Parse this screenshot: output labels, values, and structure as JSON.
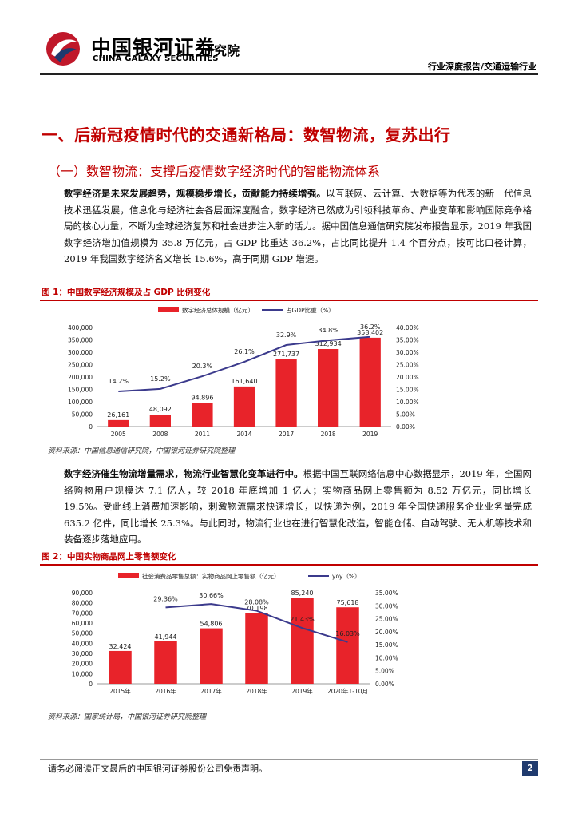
{
  "header": {
    "brand_cn": "中国银河证券",
    "brand_en": "CHINA GALAXY SECURITIES",
    "brand_inst": "研究院",
    "report_type": "行业深度报告/交通运输行业",
    "logo_colors": [
      "#c0182a",
      "#1f3a6e"
    ]
  },
  "heading1": "一、后新冠疫情时代的交通新格局：数智物流，复苏出行",
  "heading2": "（一）数智物流：支撑后疫情数字经济时代的智能物流体系",
  "para1": {
    "lead": "数字经济是未来发展趋势，规模稳步增长，贡献能力持续增强。",
    "body": "以互联网、云计算、大数据等为代表的新一代信息技术迅猛发展，信息化与经济社会各层面深度融合，数字经济已然成为引领科技革命、产业变革和影响国际竞争格局的核心力量，不断为全球经济复苏和社会进步注入新的活力。据中国信息通信研究院发布报告显示，2019 年我国数字经济增加值规模为 35.8 万亿元，占 GDP 比重达 36.2%，占比同比提升 1.4 个百分点，按可比口径计算，2019 年我国数字经济名义增长 15.6%，高于同期 GDP 增速。"
  },
  "figure1": {
    "title": "图 1：中国数字经济规模及占 GDP 比例变化",
    "source": "资料来源：中国信息通信研究院，中国银河证券研究院整理"
  },
  "para2": {
    "lead": "数字经济催生物流增量需求，物流行业智慧化变革进行中。",
    "body": "根据中国互联网络信息中心数据显示，2019 年，全国网络购物用户规模达 7.1 亿人，较 2018 年底增加 1 亿人；实物商品网上零售额为 8.52 万亿元，同比增长 19.5%。受此线上消费加速影响，刺激物流需求快速增长，以快递为例，2019 年全国快递服务企业业务量完成 635.2 亿件，同比增长 25.3%。与此同时，物流行业也在进行智慧化改造，智能仓储、自动驾驶、无人机等技术和装备逐步落地应用。"
  },
  "figure2": {
    "title": "图 2：中国实物商品网上零售额变化",
    "source": "资料来源：国家统计局，中国银河证券研究院整理"
  },
  "chart_data": [
    {
      "type": "bar",
      "title": "",
      "categories": [
        "2005",
        "2008",
        "2011",
        "2014",
        "2017",
        "2018",
        "2019"
      ],
      "series": [
        {
          "name": "数字经济总体规模（亿元）",
          "type": "bar",
          "axis": "left",
          "values": [
            26161,
            48092,
            94896,
            161640,
            271737,
            312934,
            358402
          ],
          "labels": [
            "26,161",
            "48,092",
            "94,896",
            "161,640",
            "271,737",
            "312,934",
            "358,402"
          ],
          "color": "#e8232a"
        },
        {
          "name": "占GDP比重（%）",
          "type": "line",
          "axis": "right",
          "values": [
            14.2,
            15.2,
            20.3,
            26.1,
            32.9,
            34.8,
            36.2
          ],
          "labels": [
            "14.2%",
            "15.2%",
            "20.3%",
            "26.1%",
            "32.9%",
            "34.8%",
            "36.2%"
          ],
          "color": "#3b3a8c"
        }
      ],
      "left_axis": {
        "ylim": [
          0,
          400000
        ],
        "ticks": [
          "0",
          "50,000",
          "100,000",
          "150,000",
          "200,000",
          "250,000",
          "300,000",
          "350,000",
          "400,000"
        ]
      },
      "right_axis": {
        "ylim": [
          0,
          40
        ],
        "ticks": [
          "0.00%",
          "5.00%",
          "10.00%",
          "15.00%",
          "20.00%",
          "25.00%",
          "30.00%",
          "35.00%",
          "40.00%"
        ]
      },
      "legend": "top-center",
      "grid": false
    },
    {
      "type": "bar",
      "title": "",
      "categories": [
        "2015年",
        "2016年",
        "2017年",
        "2018年",
        "2019年",
        "2020年1-10月"
      ],
      "series": [
        {
          "name": "社会消费品零售总额：实物商品网上零售额（亿元）",
          "type": "bar",
          "axis": "left",
          "values": [
            32424,
            41944,
            54806,
            70198,
            85240,
            75618
          ],
          "labels": [
            "32,424",
            "41,944",
            "54,806",
            "70,198",
            "85,240",
            "75,618"
          ],
          "color": "#e8232a"
        },
        {
          "name": "yoy（%）",
          "type": "line",
          "axis": "right",
          "values": [
            null,
            29.36,
            30.66,
            28.08,
            21.43,
            16.03
          ],
          "labels": [
            "",
            "29.36%",
            "30.66%",
            "28.08%",
            "21.43%",
            "16.03%"
          ],
          "color": "#3b3a8c"
        }
      ],
      "left_axis": {
        "ylim": [
          0,
          90000
        ],
        "ticks": [
          "0",
          "10,000",
          "20,000",
          "30,000",
          "40,000",
          "50,000",
          "60,000",
          "70,000",
          "80,000",
          "90,000"
        ]
      },
      "right_axis": {
        "ylim": [
          0,
          35
        ],
        "ticks": [
          "0.00%",
          "5.00%",
          "10.00%",
          "15.00%",
          "20.00%",
          "25.00%",
          "30.00%",
          "35.00%"
        ]
      },
      "legend": "top-center",
      "grid": false
    }
  ],
  "footer": {
    "disclaimer": "请务必阅读正文最后的中国银河证券股份公司免责声明。",
    "page_number": "2"
  }
}
